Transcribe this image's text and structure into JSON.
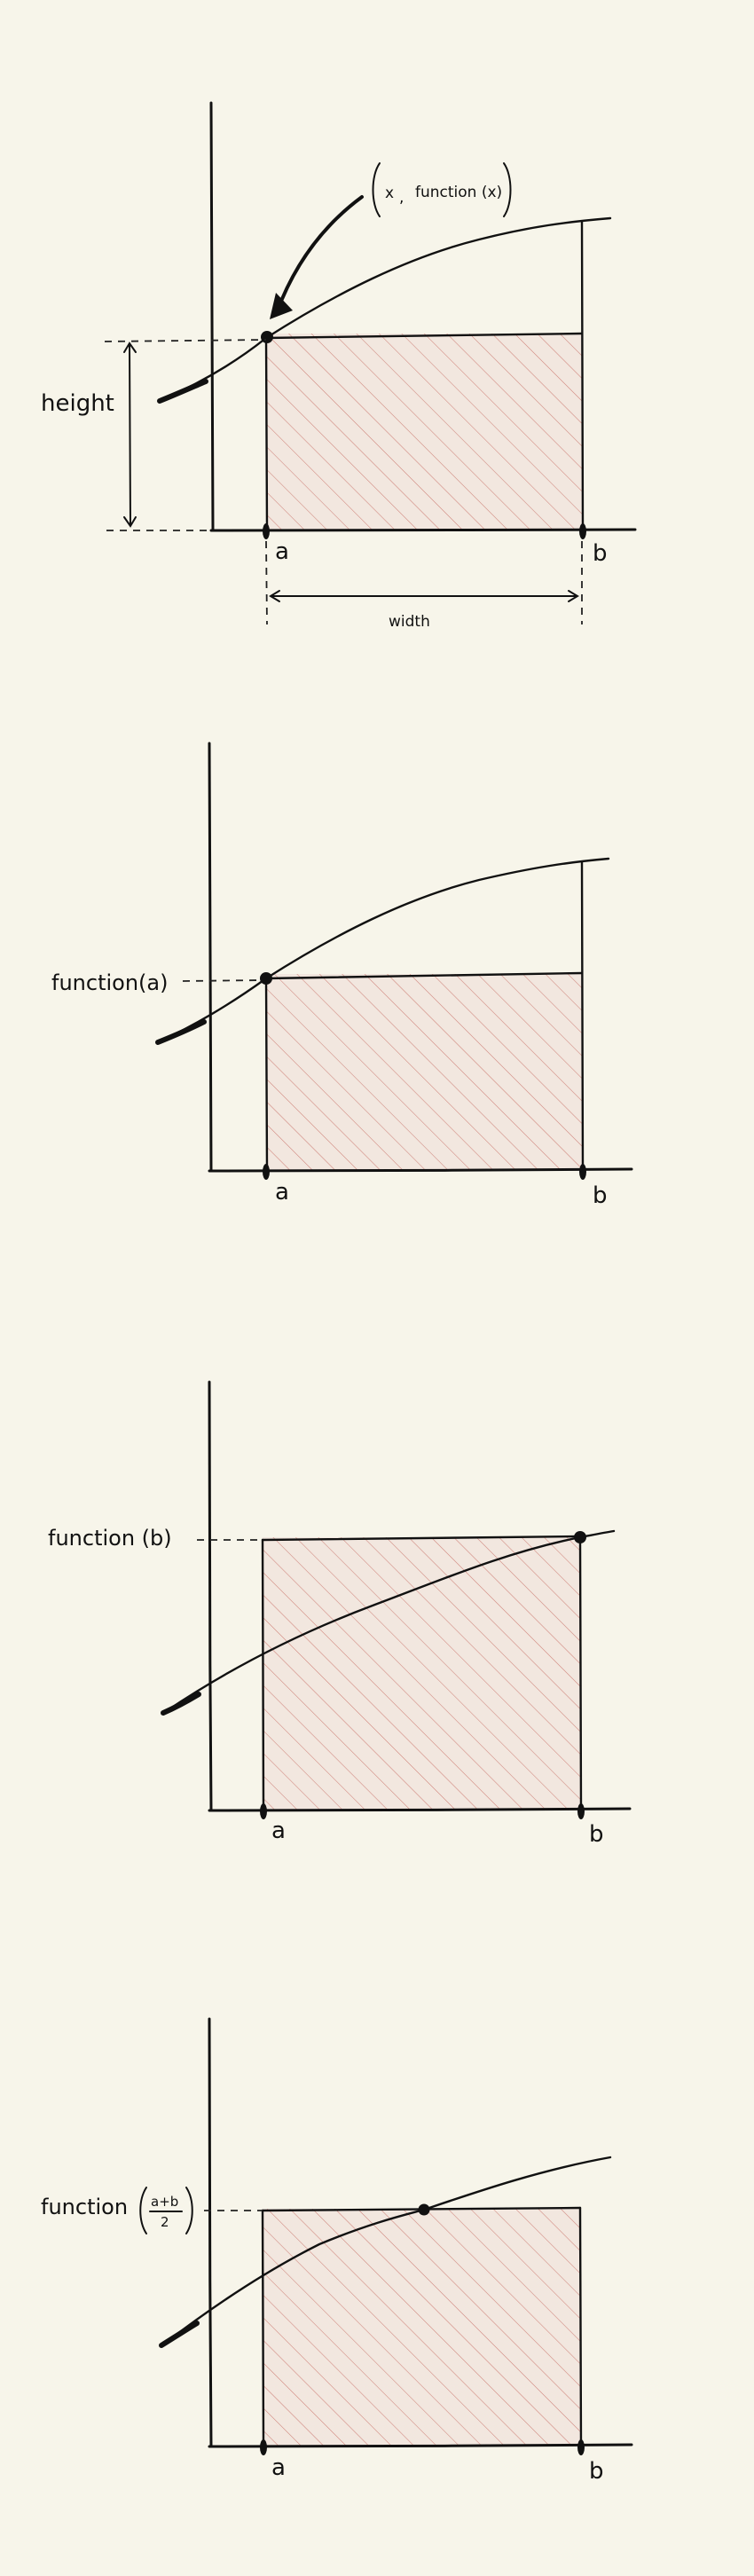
{
  "panels": [
    {
      "id": "panel-1",
      "point_label": {
        "x": "x",
        "comma": ",",
        "fx": "function (x)"
      },
      "height_label": "height",
      "width_label": "width",
      "a_label": "a",
      "b_label": "b"
    },
    {
      "id": "panel-2",
      "y_label": "function(a)",
      "a_label": "a",
      "b_label": "b"
    },
    {
      "id": "panel-3",
      "y_label": "function (b)",
      "a_label": "a",
      "b_label": "b"
    },
    {
      "id": "panel-4",
      "y_label": "function",
      "y_label_num": "a+b",
      "y_label_den": "2",
      "a_label": "a",
      "b_label": "b"
    }
  ],
  "colors": {
    "background": "#f7f5ea",
    "ink": "#111111",
    "hatch": "#c0605a",
    "hatch_fill": "#f0e4dc"
  }
}
